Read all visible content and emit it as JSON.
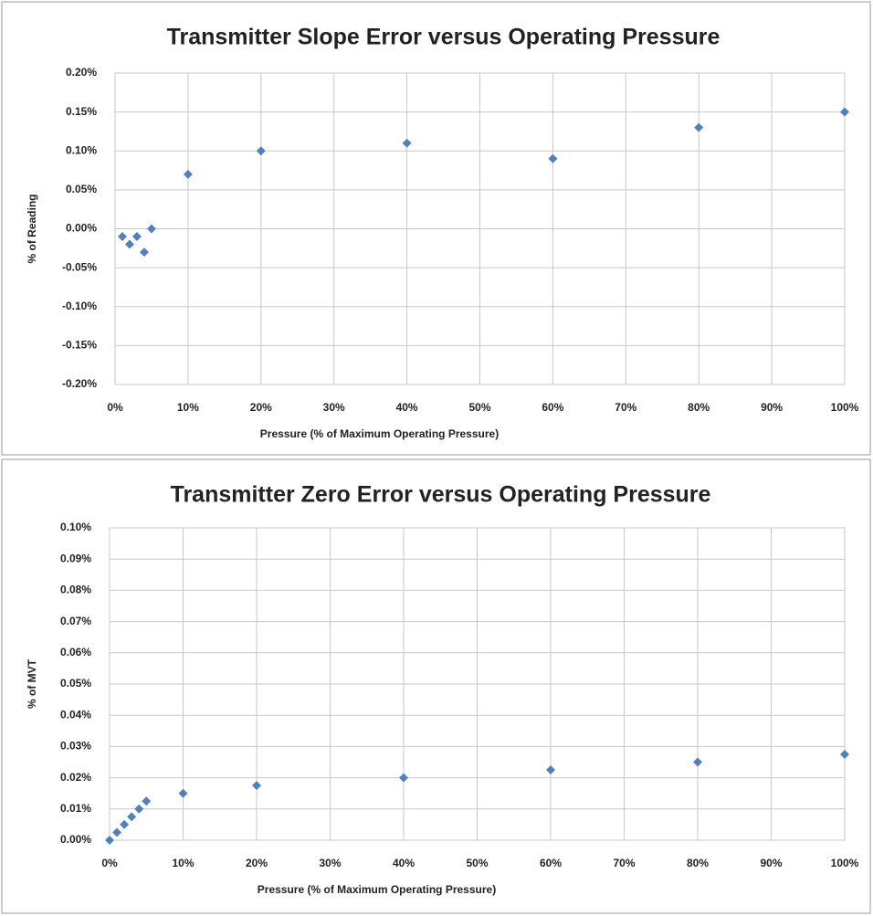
{
  "chart_data": [
    {
      "type": "scatter",
      "title": "Transmitter Slope Error versus Operating Pressure",
      "xlabel": "Pressure (% of Maximum Operating Pressure)",
      "ylabel": "% of Reading",
      "series": [
        {
          "color": "#4f81bd",
          "x": [
            1,
            2,
            3,
            4,
            5,
            10,
            20,
            40,
            60,
            80,
            100
          ],
          "values": [
            -0.01,
            -0.02,
            -0.01,
            -0.03,
            0.0,
            0.07,
            0.1,
            0.11,
            0.09,
            0.13,
            0.15
          ]
        }
      ],
      "xlim": [
        0,
        100
      ],
      "xticks": [
        {
          "value": 0,
          "label": "0%"
        },
        {
          "value": 10,
          "label": "10%"
        },
        {
          "value": 20,
          "label": "20%"
        },
        {
          "value": 30,
          "label": "30%"
        },
        {
          "value": 40,
          "label": "40%"
        },
        {
          "value": 50,
          "label": "50%"
        },
        {
          "value": 60,
          "label": "60%"
        },
        {
          "value": 70,
          "label": "70%"
        },
        {
          "value": 80,
          "label": "80%"
        },
        {
          "value": 90,
          "label": "90%"
        },
        {
          "value": 100,
          "label": "100%"
        }
      ],
      "ylim": [
        -0.2,
        0.2
      ],
      "yticks": [
        {
          "value": -0.2,
          "label": "-0.20%"
        },
        {
          "value": -0.15,
          "label": "-0.15%"
        },
        {
          "value": -0.1,
          "label": "-0.10%"
        },
        {
          "value": -0.05,
          "label": "-0.05%"
        },
        {
          "value": 0,
          "label": "0.00%"
        },
        {
          "value": 0.05,
          "label": "0.05%"
        },
        {
          "value": 0.1,
          "label": "0.10%"
        },
        {
          "value": 0.15,
          "label": "0.15%"
        },
        {
          "value": 0.2,
          "label": "0.20%"
        }
      ],
      "grid": true
    },
    {
      "type": "scatter",
      "title": "Transmitter Zero Error versus Operating Pressure",
      "xlabel": "Pressure (% of Maximum Operating Pressure)",
      "ylabel": "% of MVT",
      "series": [
        {
          "color": "#4f81bd",
          "x": [
            0,
            1,
            2,
            3,
            4,
            5,
            10,
            20,
            40,
            60,
            80,
            100
          ],
          "values": [
            0.0,
            0.0025,
            0.005,
            0.0075,
            0.01,
            0.0125,
            0.015,
            0.0175,
            0.02,
            0.0225,
            0.025,
            0.0275
          ]
        }
      ],
      "xlim": [
        0,
        100
      ],
      "xticks": [
        {
          "value": 0,
          "label": "0%"
        },
        {
          "value": 10,
          "label": "10%"
        },
        {
          "value": 20,
          "label": "20%"
        },
        {
          "value": 30,
          "label": "30%"
        },
        {
          "value": 40,
          "label": "40%"
        },
        {
          "value": 50,
          "label": "50%"
        },
        {
          "value": 60,
          "label": "60%"
        },
        {
          "value": 70,
          "label": "70%"
        },
        {
          "value": 80,
          "label": "80%"
        },
        {
          "value": 90,
          "label": "90%"
        },
        {
          "value": 100,
          "label": "100%"
        }
      ],
      "ylim": [
        0,
        0.1
      ],
      "yticks": [
        {
          "value": 0,
          "label": "0.00%"
        },
        {
          "value": 0.01,
          "label": "0.01%"
        },
        {
          "value": 0.02,
          "label": "0.02%"
        },
        {
          "value": 0.03,
          "label": "0.03%"
        },
        {
          "value": 0.04,
          "label": "0.04%"
        },
        {
          "value": 0.05,
          "label": "0.05%"
        },
        {
          "value": 0.06,
          "label": "0.06%"
        },
        {
          "value": 0.07,
          "label": "0.07%"
        },
        {
          "value": 0.08,
          "label": "0.08%"
        },
        {
          "value": 0.09,
          "label": "0.09%"
        },
        {
          "value": 0.1,
          "label": "0.10%"
        }
      ],
      "grid": true
    }
  ]
}
